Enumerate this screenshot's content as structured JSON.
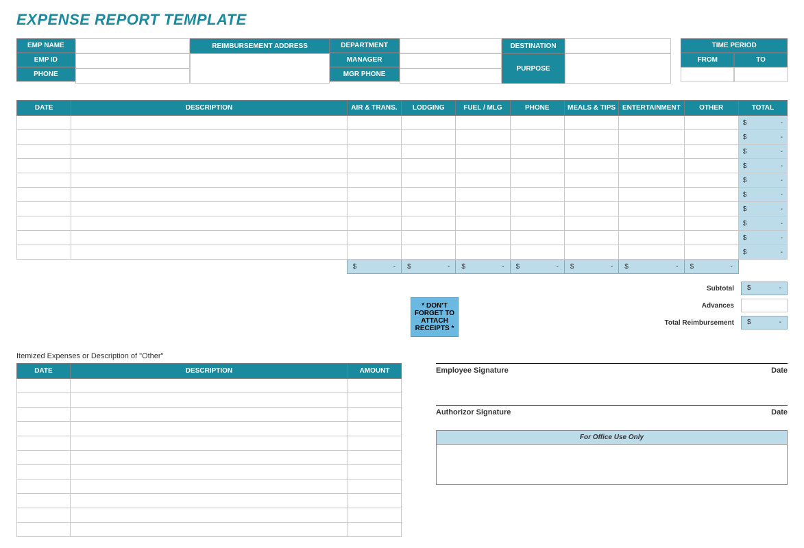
{
  "title": "EXPENSE REPORT TEMPLATE",
  "colors": {
    "accent": "#1a8a9e",
    "light_blue": "#bcdcea",
    "reminder_bg": "#6bb8e0",
    "border": "#c8c8c8"
  },
  "header": {
    "emp_name_label": "EMP NAME",
    "emp_id_label": "EMP ID",
    "phone_label": "PHONE",
    "reimb_address_label": "REIMBURSEMENT ADDRESS",
    "department_label": "DEPARTMENT",
    "manager_label": "MANAGER",
    "mgr_phone_label": "MGR PHONE",
    "destination_label": "DESTINATION",
    "purpose_label": "PURPOSE",
    "time_period_label": "TIME PERIOD",
    "from_label": "FROM",
    "to_label": "TO",
    "emp_name": "",
    "emp_id": "",
    "phone": "",
    "reimb_address": "",
    "department": "",
    "manager": "",
    "mgr_phone": "",
    "destination": "",
    "purpose": "",
    "from": "",
    "to": ""
  },
  "expense_table": {
    "columns": [
      "DATE",
      "DESCRIPTION",
      "AIR & TRANS.",
      "LODGING",
      "FUEL / MLG",
      "PHONE",
      "MEALS & TIPS",
      "ENTERTAINMENT",
      "OTHER",
      "TOTAL"
    ],
    "row_count": 10,
    "row_total_dollar": "$",
    "row_total_dash": "-",
    "subtotal_dollar": "$",
    "subtotal_dash": "-"
  },
  "summary": {
    "reminder": "* DON'T FORGET TO ATTACH RECEIPTS *",
    "subtotal_label": "Subtotal",
    "advances_label": "Advances",
    "total_reimb_label": "Total Reimbursement",
    "dollar": "$",
    "dash": "-"
  },
  "itemized": {
    "title": "Itemized Expenses or Description of \"Other\"",
    "columns": [
      "DATE",
      "DESCRIPTION",
      "AMOUNT"
    ],
    "row_count": 11
  },
  "signatures": {
    "employee_label": "Employee Signature",
    "authorizor_label": "Authorizor Signature",
    "date_label": "Date"
  },
  "office": {
    "heading": "For Office Use Only"
  }
}
